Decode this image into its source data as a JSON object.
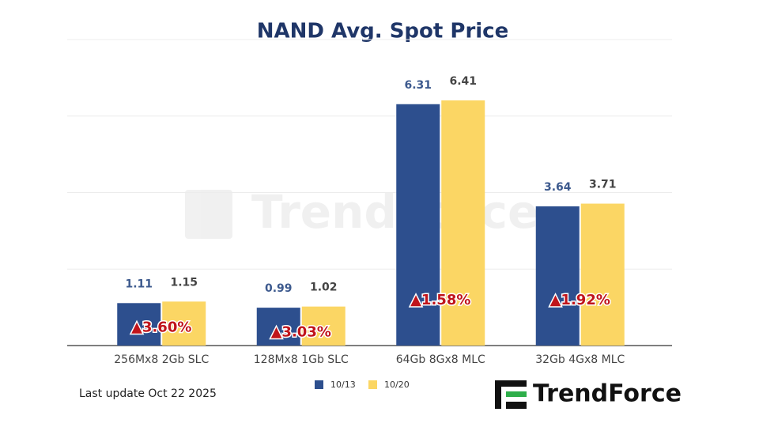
{
  "chart_data": {
    "type": "bar",
    "title": "NAND Avg. Spot Price",
    "categories": [
      "256Mx8 2Gb SLC",
      "128Mx8 1Gb SLC",
      "64Gb 8Gx8 MLC",
      "32Gb 4Gx8 MLC"
    ],
    "series": [
      {
        "name": "10/13",
        "color": "#2d4f8e",
        "values": [
          1.11,
          0.99,
          6.31,
          3.64
        ]
      },
      {
        "name": "10/20",
        "color": "#fbd664",
        "values": [
          1.15,
          1.02,
          6.41,
          3.71
        ]
      }
    ],
    "change_labels": [
      "▲3.60%",
      "▲3.03%",
      "▲1.58%",
      "▲1.92%"
    ],
    "ylim": [
      0,
      8
    ],
    "yticks": [
      0,
      2,
      4,
      6,
      8
    ],
    "grid": true,
    "footnote": "Last update Oct 22  2025",
    "logo": "TrendForce"
  }
}
